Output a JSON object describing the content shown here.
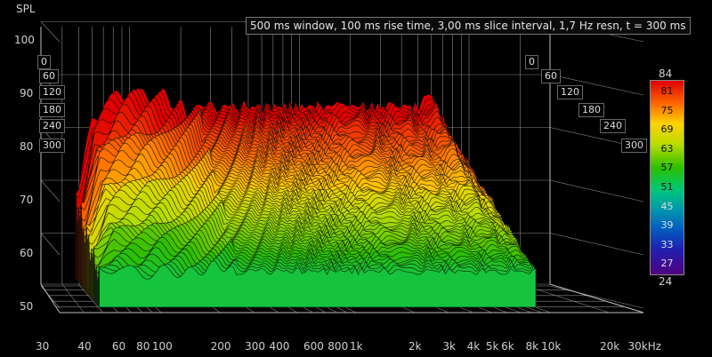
{
  "settings_text": "500 ms window, 100 ms rise time, 3,00 ms slice interval, 1,7 Hz resn, t = 300 ms",
  "y_axis": {
    "title": "SPL",
    "ticks": [
      "100",
      "90",
      "80",
      "70",
      "60",
      "50"
    ]
  },
  "x_axis": {
    "ticks": [
      "30",
      "40",
      "60",
      "80",
      "100",
      "200",
      "300",
      "400",
      "600",
      "800",
      "1k",
      "2k",
      "3k",
      "4k",
      "5k",
      "6k",
      "8k",
      "10k",
      "20k",
      "30kHz"
    ]
  },
  "time_axis_left": [
    "0",
    "60",
    "120",
    "180",
    "240",
    "300"
  ],
  "time_axis_right": [
    "0",
    "60",
    "120",
    "180",
    "240",
    "300"
  ],
  "colorbar": {
    "top": "84",
    "bottom": "24",
    "ticks": [
      "81",
      "75",
      "69",
      "63",
      "57",
      "51",
      "45",
      "39",
      "33",
      "27"
    ]
  },
  "chart_data": {
    "type": "area",
    "subtype": "waterfall",
    "title": "500 ms window, 100 ms rise time, 3,00 ms slice interval, 1,7 Hz resn, t = 300 ms",
    "ylabel": "SPL",
    "xlabel": "",
    "x_scale": "log",
    "xlim": [
      30,
      30000
    ],
    "ylim": [
      47,
      103
    ],
    "time_range_ms": [
      0,
      300
    ],
    "color_scale_range": [
      24,
      84
    ],
    "series": [
      {
        "time_ms": 0,
        "x": [
          50,
          60,
          80,
          100,
          150,
          200,
          300,
          500,
          1000,
          2000,
          3000,
          5000,
          6000,
          8000
        ],
        "values": [
          66,
          80,
          84,
          85,
          84,
          84,
          84,
          84,
          84,
          84,
          84,
          84,
          86,
          77
        ]
      },
      {
        "time_ms": 300,
        "x": [
          50,
          60,
          80,
          100,
          150,
          200,
          300,
          500,
          1000,
          2000,
          3000,
          5000,
          6000,
          8000
        ],
        "values": [
          56,
          58,
          57,
          58,
          57,
          57,
          57,
          57,
          57,
          57,
          57,
          57,
          57,
          57
        ]
      }
    ]
  }
}
